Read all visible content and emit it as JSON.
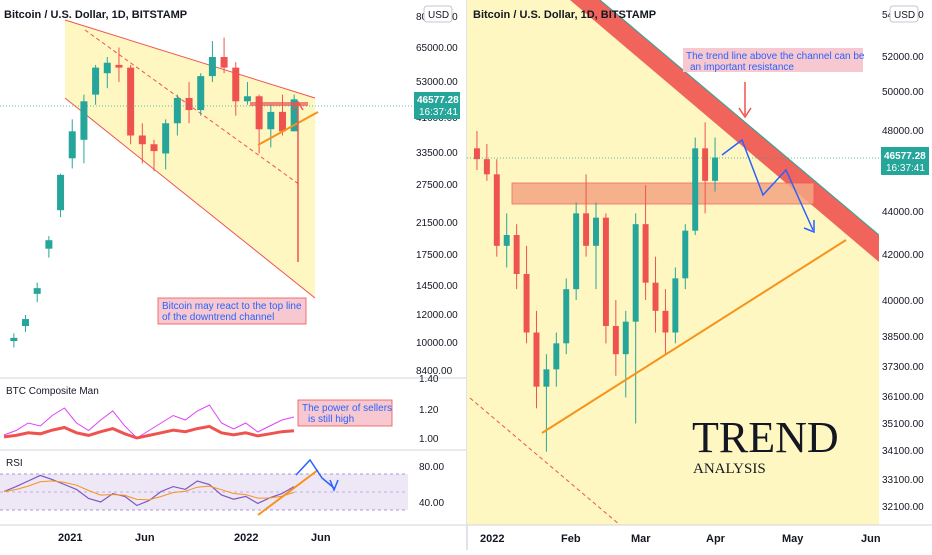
{
  "left_panel": {
    "title": "Bitcoin / U.S. Dollar, 1D, BITSTAMP",
    "currency": "USD",
    "price_axis": [
      "80000.00",
      "65000.00",
      "53000.00",
      "41000.00",
      "33500.00",
      "27500.00",
      "21500.00",
      "17500.00",
      "14500.00",
      "12000.00",
      "10000.00",
      "8400.00"
    ],
    "price_tag": {
      "price": "46577.28",
      "countdown": "16:37:41"
    },
    "time_axis": [
      "2021",
      "Jun",
      "2022",
      "Jun"
    ],
    "note": [
      "Bitcoin may react to the top line",
      "of the downtrend channel"
    ],
    "composite": {
      "title": "BTC Composite Man",
      "axis": [
        "1.40",
        "1.20",
        "1.00"
      ],
      "note": [
        "The power of sellers",
        "is still high"
      ]
    },
    "rsi": {
      "title": "RSI",
      "axis": [
        "80.00",
        "40.00"
      ]
    }
  },
  "right_panel": {
    "title": "Bitcoin / U.S. Dollar, 1D, BITSTAMP",
    "currency": "USD",
    "price_axis": [
      "54000.00",
      "52000.00",
      "50000.00",
      "48000.00",
      "46000.00",
      "44000.00",
      "42000.00",
      "40000.00",
      "38500.00",
      "37300.00",
      "36100.00",
      "35100.00",
      "34100.00",
      "33100.00",
      "32100.00"
    ],
    "price_tag": {
      "price": "46577.28",
      "countdown": "16:37:41"
    },
    "time_axis": [
      "2022",
      "Feb",
      "Mar",
      "Apr",
      "May",
      "Jun"
    ],
    "note": [
      "The trend line above the channel can be",
      "an important resistance"
    ],
    "headline": "TREND",
    "subheadline": "ANALYSIS"
  },
  "colors": {
    "up": "#26a69a",
    "down": "#ef5350",
    "channel_fill": "#fff7c2",
    "resistance_band": "#ef5350",
    "support_line": "#f7931a",
    "projection": "#2962ff",
    "price_tag": "#26a69a"
  },
  "chart_data": [
    {
      "type": "candlestick",
      "title": "Bitcoin / U.S. Dollar, 1D, BITSTAMP",
      "x": [
        "2021",
        "Jun",
        "2022",
        "Jun"
      ],
      "ylim": [
        8400,
        80000
      ],
      "y_scale": "log",
      "last_price": 46577.28,
      "series": [
        {
          "values": [
            [
              10000,
              10500,
              9600,
              10200
            ],
            [
              11000,
              11800,
              10600,
              11500
            ],
            [
              13500,
              14500,
              12800,
              14000
            ],
            [
              18000,
              19500,
              17000,
              19000
            ],
            [
              23000,
              29000,
              22000,
              28800
            ],
            [
              32000,
              41000,
              30000,
              38000
            ],
            [
              36000,
              48000,
              31000,
              46000
            ],
            [
              48000,
              58000,
              45000,
              57000
            ],
            [
              55000,
              61000,
              50000,
              58800
            ],
            [
              58000,
              64800,
              52000,
              57000
            ],
            [
              57000,
              58000,
              35000,
              37000
            ],
            [
              37000,
              40000,
              31000,
              35000
            ],
            [
              35000,
              36000,
              29500,
              33500
            ],
            [
              33000,
              41000,
              29800,
              40000
            ],
            [
              40000,
              48000,
              37000,
              47000
            ],
            [
              47000,
              52000,
              40000,
              43500
            ],
            [
              43500,
              55000,
              42000,
              54000
            ],
            [
              54000,
              67500,
              52000,
              61000
            ],
            [
              61000,
              69000,
              55000,
              57000
            ],
            [
              57000,
              59000,
              42000,
              46000
            ],
            [
              46000,
              52000,
              45000,
              47500
            ],
            [
              47500,
              48000,
              33000,
              38500
            ],
            [
              38500,
              45000,
              34300,
              43000
            ],
            [
              43000,
              48000,
              37000,
              38000
            ],
            [
              38000,
              48000,
              38000,
              46577
            ]
          ]
        }
      ]
    },
    {
      "type": "line",
      "title": "BTC Composite Man",
      "ylim": [
        0.95,
        1.4
      ],
      "series": [
        {
          "name": "BTC Composite Man",
          "values": [
            1.02,
            1.05,
            1.1,
            1.08,
            1.15,
            1.2,
            1.1,
            1.05,
            1.12,
            1.18,
            1.08,
            1.0,
            1.05,
            1.1,
            1.15,
            1.12,
            1.18,
            1.22,
            1.1,
            1.06,
            1.1,
            1.04,
            1.08,
            1.12,
            1.14
          ]
        }
      ]
    },
    {
      "type": "line",
      "title": "RSI",
      "ylim": [
        20,
        90
      ],
      "series": [
        {
          "name": "RSI",
          "values": [
            55,
            62,
            70,
            78,
            72,
            65,
            58,
            45,
            40,
            52,
            48,
            35,
            42,
            55,
            62,
            58,
            70,
            65,
            50,
            44,
            48,
            38,
            46,
            52,
            62
          ]
        }
      ]
    },
    {
      "type": "candlestick",
      "title": "Bitcoin / U.S. Dollar, 1D, BITSTAMP",
      "x": [
        "2022",
        "Feb",
        "Mar",
        "Apr",
        "May",
        "Jun"
      ],
      "ylim": [
        32100,
        54000
      ],
      "last_price": 46577.28,
      "series": [
        {
          "values": [
            [
              47000,
              47800,
              46000,
              46500
            ],
            [
              46500,
              47200,
              45500,
              45800
            ],
            [
              45800,
              46500,
              42000,
              42500
            ],
            [
              42500,
              44000,
              41500,
              43000
            ],
            [
              43000,
              43500,
              40500,
              41200
            ],
            [
              41200,
              42500,
              38000,
              38500
            ],
            [
              38500,
              39500,
              35000,
              36000
            ],
            [
              36000,
              37500,
              33000,
              36800
            ],
            [
              36800,
              38500,
              36000,
              38000
            ],
            [
              38000,
              41000,
              37500,
              40500
            ],
            [
              40500,
              44500,
              40000,
              44000
            ],
            [
              44000,
              45800,
              42000,
              42500
            ],
            [
              42500,
              44500,
              40500,
              43800
            ],
            [
              43800,
              44000,
              38000,
              38800
            ],
            [
              38800,
              40000,
              36500,
              37500
            ],
            [
              37500,
              39500,
              35500,
              39000
            ],
            [
              39000,
              44000,
              34300,
              43500
            ],
            [
              43500,
              45300,
              40000,
              40800
            ],
            [
              40800,
              42000,
              38500,
              39500
            ],
            [
              39500,
              40500,
              37500,
              38500
            ],
            [
              38500,
              41500,
              38000,
              41000
            ],
            [
              41000,
              43500,
              40500,
              43200
            ],
            [
              43200,
              47500,
              43000,
              47000
            ],
            [
              47000,
              48200,
              44000,
              45500
            ],
            [
              45500,
              47500,
              45000,
              46577
            ]
          ]
        }
      ]
    }
  ]
}
